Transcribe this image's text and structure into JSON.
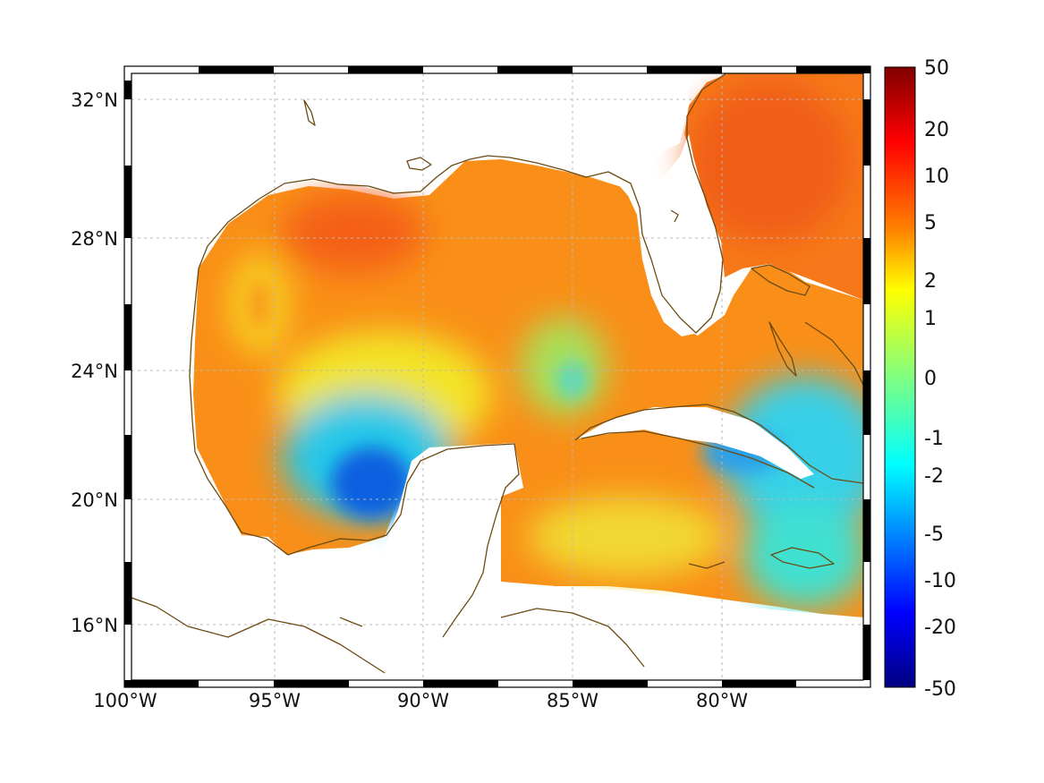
{
  "map": {
    "x_ticks": [
      "100°W",
      "95°W",
      "90°W",
      "85°W",
      "80°W"
    ],
    "y_ticks": [
      "32°N",
      "28°N",
      "24°N",
      "20°N",
      "16°N"
    ],
    "grid": true,
    "frame_style": "alternating black/white"
  },
  "colorbar": {
    "ticks": [
      "50",
      "20",
      "10",
      "5",
      "2",
      "1",
      "0",
      "-1",
      "-2",
      "-5",
      "-10",
      "-20",
      "-50"
    ],
    "colormap": [
      "#800000",
      "#ff0000",
      "#ff8000",
      "#ffff00",
      "#80ff80",
      "#00ffff",
      "#0080ff",
      "#0000ff",
      "#000080"
    ]
  }
}
